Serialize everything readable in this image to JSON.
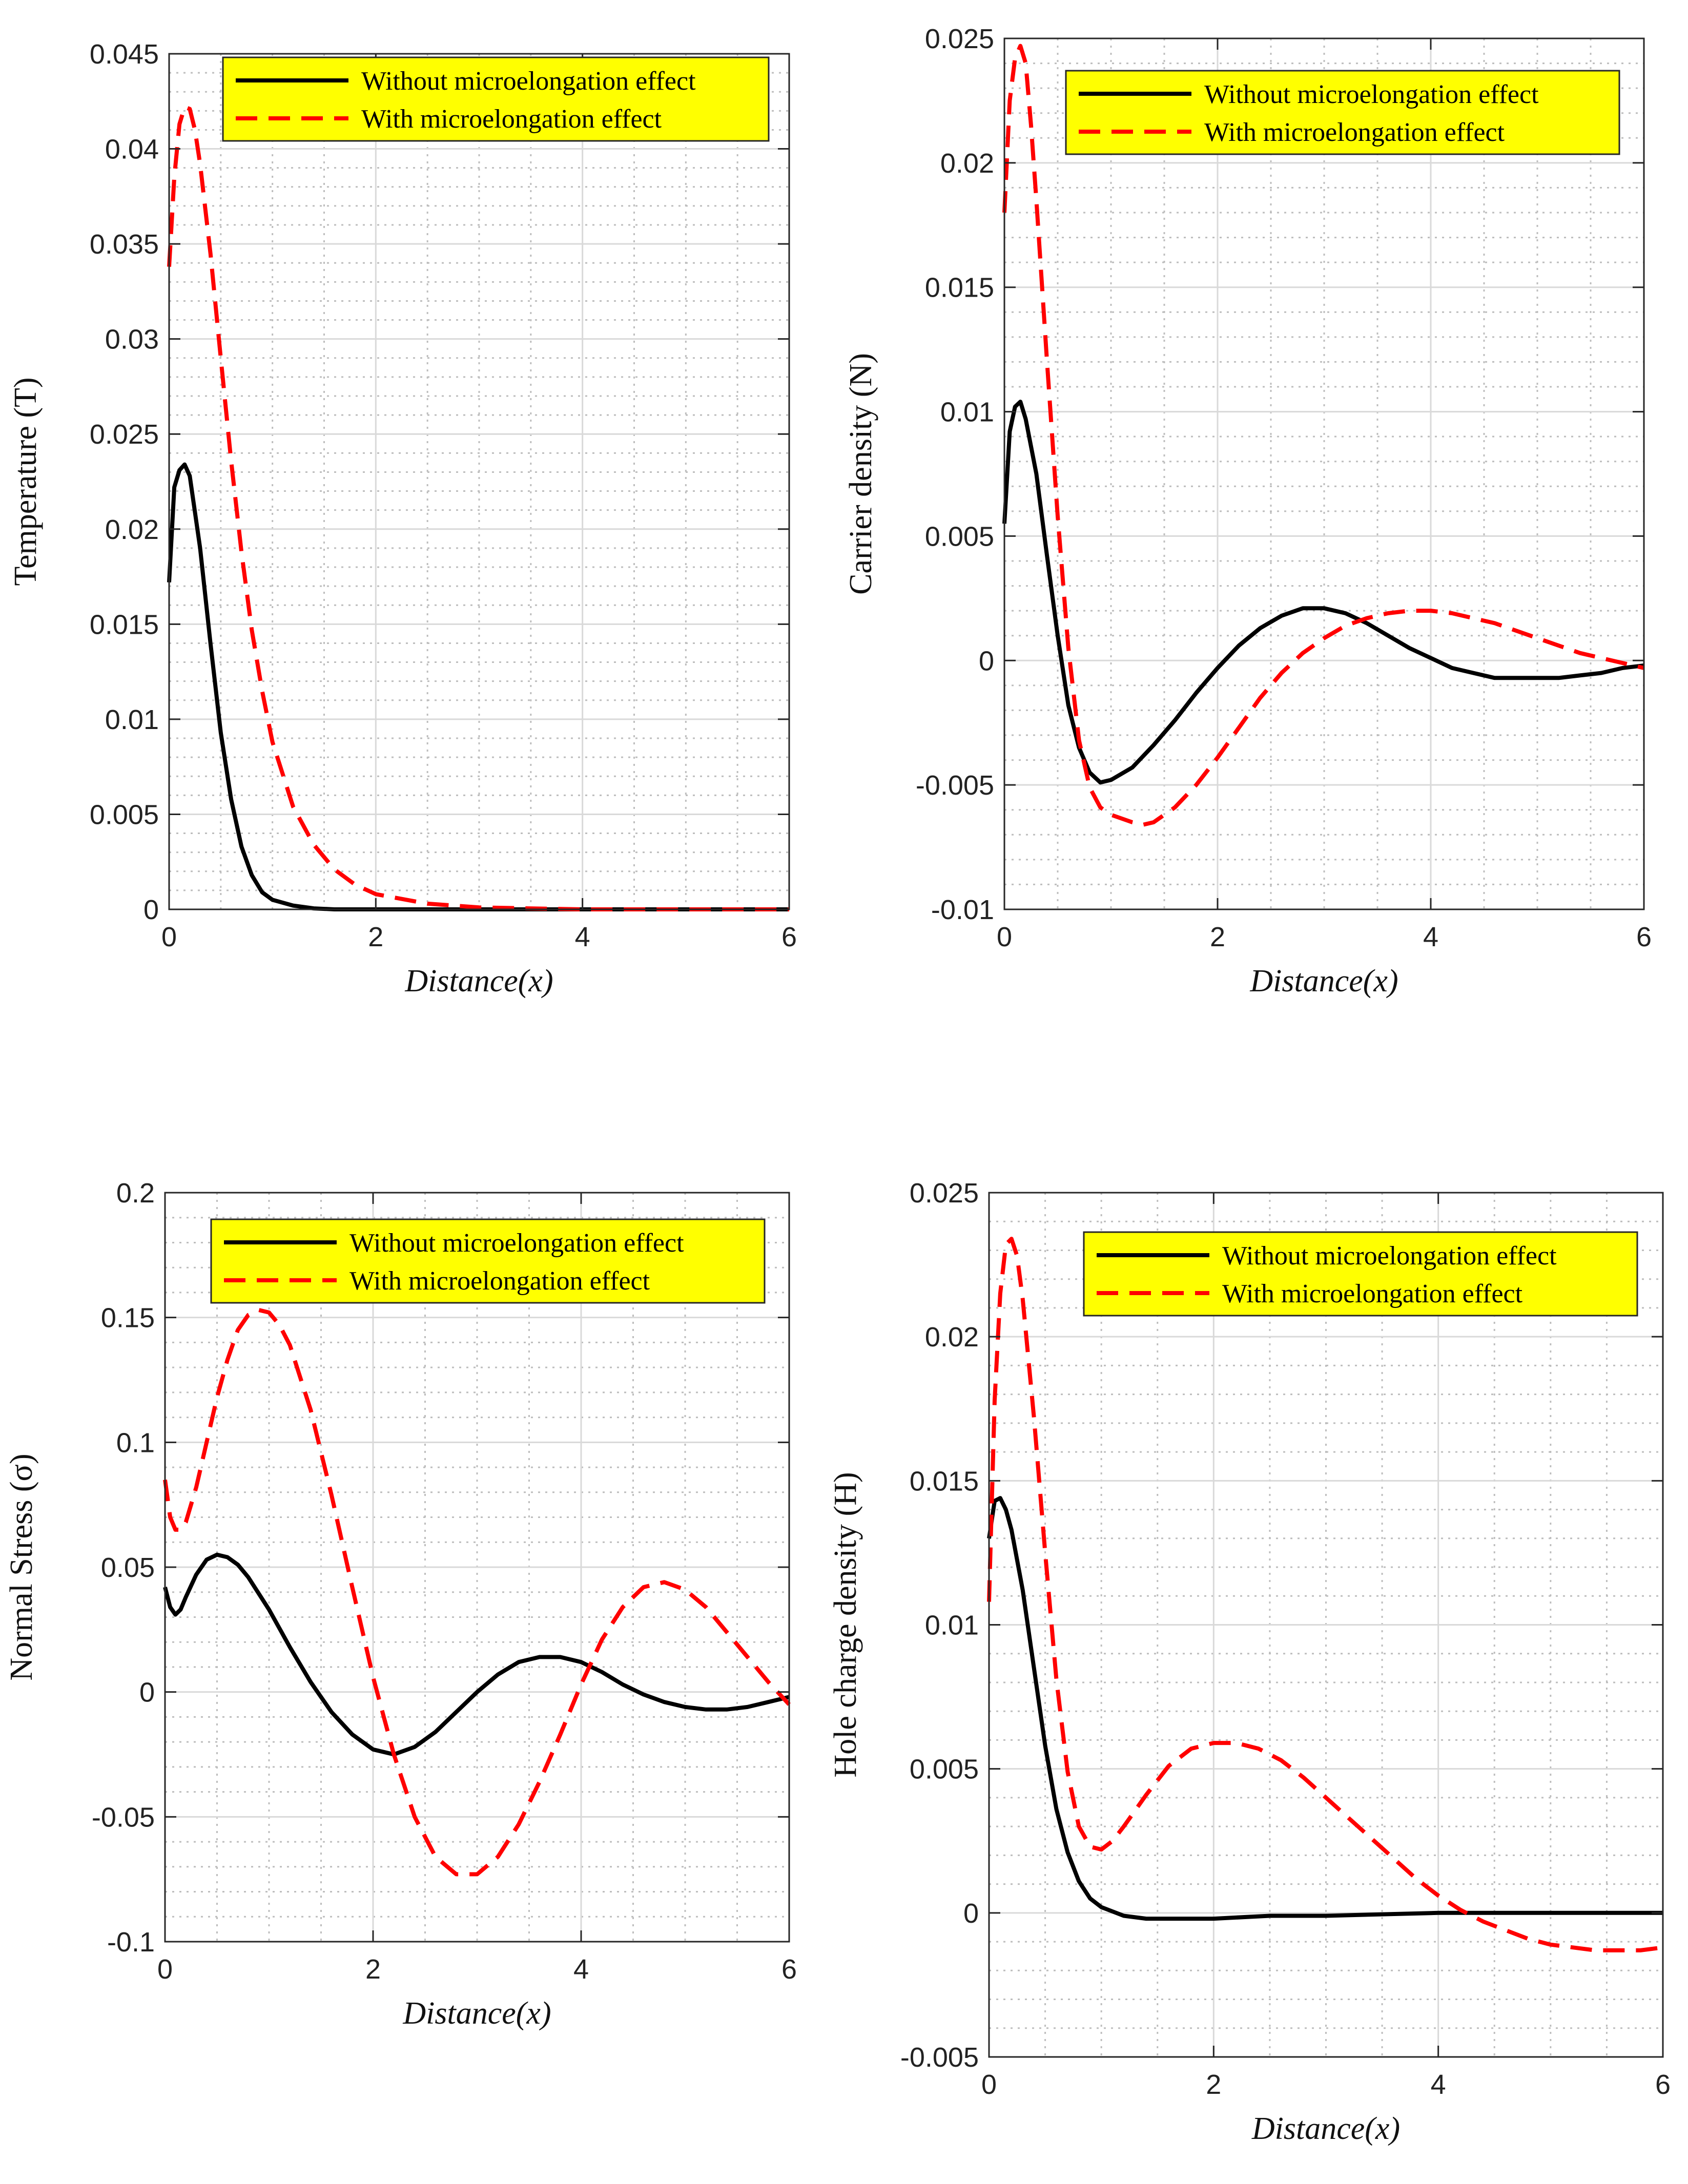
{
  "chart_data": [
    {
      "type": "line",
      "title": "",
      "xlabel": "Distance(x)",
      "ylabel": "Temperature (T)",
      "xlim": [
        0,
        6
      ],
      "ylim": [
        0,
        0.045
      ],
      "xticks": [
        0,
        2,
        4,
        6
      ],
      "xtick_labels": [
        "0",
        "2",
        "4",
        "6"
      ],
      "yticks": [
        0,
        0.005,
        0.01,
        0.015,
        0.02,
        0.025,
        0.03,
        0.035,
        0.04,
        0.045
      ],
      "ytick_labels": [
        "0",
        "0.005",
        "0.01",
        "0.015",
        "0.02",
        "0.025",
        "0.03",
        "0.035",
        "0.04",
        "0.045"
      ],
      "grid": true,
      "legend_position": "top-right",
      "series": [
        {
          "name": "Without microelongation effect",
          "style": "solid",
          "color": "#000000",
          "x": [
            0,
            0.05,
            0.1,
            0.15,
            0.2,
            0.3,
            0.4,
            0.5,
            0.6,
            0.7,
            0.8,
            0.9,
            1.0,
            1.2,
            1.4,
            1.6,
            2.0,
            3.0,
            4.0,
            5.0,
            6.0
          ],
          "y": [
            0.0172,
            0.0222,
            0.0231,
            0.0234,
            0.0228,
            0.019,
            0.014,
            0.0093,
            0.0058,
            0.0033,
            0.0018,
            0.0009,
            0.0005,
            0.0002,
            5e-05,
            0.0,
            0.0,
            0.0,
            0.0,
            0.0,
            0.0
          ]
        },
        {
          "name": "With microelongation effect",
          "style": "dashed",
          "color": "#ff0000",
          "x": [
            0,
            0.05,
            0.1,
            0.15,
            0.2,
            0.25,
            0.3,
            0.4,
            0.5,
            0.6,
            0.7,
            0.8,
            0.9,
            1.0,
            1.2,
            1.4,
            1.6,
            1.8,
            2.0,
            2.5,
            3.0,
            4.0,
            5.0,
            6.0
          ],
          "y": [
            0.0338,
            0.0385,
            0.0413,
            0.0422,
            0.0421,
            0.041,
            0.0392,
            0.0345,
            0.029,
            0.0236,
            0.0188,
            0.0147,
            0.0115,
            0.0088,
            0.0054,
            0.0034,
            0.0021,
            0.0013,
            0.0008,
            0.0003,
            0.0001,
            0.0,
            0.0,
            0.0
          ]
        }
      ]
    },
    {
      "type": "line",
      "title": "",
      "xlabel": "Distance(x)",
      "ylabel": "Carrier  density  (N)",
      "xlim": [
        0,
        6
      ],
      "ylim": [
        -0.01,
        0.025
      ],
      "xticks": [
        0,
        2,
        4,
        6
      ],
      "xtick_labels": [
        "0",
        "2",
        "4",
        "6"
      ],
      "yticks": [
        -0.01,
        -0.005,
        0,
        0.005,
        0.01,
        0.015,
        0.02,
        0.025
      ],
      "ytick_labels": [
        "-0.01",
        "-0.005",
        "0",
        "0.005",
        "0.01",
        "0.015",
        "0.02",
        "0.025"
      ],
      "grid": true,
      "legend_position": "top-right",
      "series": [
        {
          "name": "Without microelongation effect",
          "style": "solid",
          "color": "#000000",
          "x": [
            0,
            0.05,
            0.1,
            0.15,
            0.2,
            0.3,
            0.4,
            0.5,
            0.6,
            0.7,
            0.8,
            0.9,
            1.0,
            1.2,
            1.4,
            1.6,
            1.8,
            2.0,
            2.2,
            2.4,
            2.6,
            2.8,
            3.0,
            3.2,
            3.4,
            3.6,
            3.8,
            4.0,
            4.2,
            4.4,
            4.6,
            4.8,
            5.0,
            5.2,
            5.4,
            5.6,
            5.8,
            6.0
          ],
          "y": [
            0.0055,
            0.0092,
            0.0102,
            0.0104,
            0.0097,
            0.0075,
            0.0042,
            0.001,
            -0.0018,
            -0.0035,
            -0.0045,
            -0.0049,
            -0.0048,
            -0.0043,
            -0.0034,
            -0.0024,
            -0.0013,
            -0.0003,
            0.0006,
            0.0013,
            0.0018,
            0.0021,
            0.0021,
            0.0019,
            0.0015,
            0.001,
            0.0005,
            0.0001,
            -0.0003,
            -0.0005,
            -0.0007,
            -0.0007,
            -0.0007,
            -0.0007,
            -0.0006,
            -0.0005,
            -0.0003,
            -0.0002
          ]
        },
        {
          "name": "With microelongation effect",
          "style": "dashed",
          "color": "#ff0000",
          "x": [
            0,
            0.05,
            0.1,
            0.15,
            0.2,
            0.25,
            0.3,
            0.4,
            0.5,
            0.6,
            0.7,
            0.8,
            0.9,
            1.0,
            1.2,
            1.3,
            1.4,
            1.6,
            1.8,
            2.0,
            2.2,
            2.4,
            2.6,
            2.8,
            3.0,
            3.2,
            3.4,
            3.6,
            3.8,
            4.0,
            4.2,
            4.4,
            4.6,
            4.8,
            5.0,
            5.2,
            5.4,
            5.6,
            5.8,
            6.0
          ],
          "y": [
            0.018,
            0.0225,
            0.0242,
            0.0247,
            0.024,
            0.0215,
            0.0185,
            0.012,
            0.0058,
            0.0005,
            -0.0032,
            -0.0051,
            -0.0059,
            -0.0062,
            -0.0065,
            -0.0066,
            -0.0065,
            -0.0059,
            -0.005,
            -0.0039,
            -0.0027,
            -0.0015,
            -0.0005,
            0.0003,
            0.0009,
            0.0014,
            0.0017,
            0.0019,
            0.002,
            0.002,
            0.0019,
            0.0017,
            0.0015,
            0.0012,
            0.0009,
            0.0006,
            0.0003,
            0.0001,
            -0.0001,
            -0.0003
          ]
        }
      ]
    },
    {
      "type": "line",
      "title": "",
      "xlabel": "Distance(x)",
      "ylabel": "Normal Stress (σ)",
      "xlim": [
        0,
        6
      ],
      "ylim": [
        -0.1,
        0.2
      ],
      "xticks": [
        0,
        2,
        4,
        6
      ],
      "xtick_labels": [
        "0",
        "2",
        "4",
        "6"
      ],
      "yticks": [
        -0.1,
        -0.05,
        0,
        0.05,
        0.1,
        0.15,
        0.2
      ],
      "ytick_labels": [
        "-0.1",
        "-0.05",
        "0",
        "0.05",
        "0.1",
        "0.15",
        "0.2"
      ],
      "grid": true,
      "legend_position": "top-right",
      "series": [
        {
          "name": "Without microelongation effect",
          "style": "solid",
          "color": "#000000",
          "x": [
            0,
            0.05,
            0.1,
            0.15,
            0.2,
            0.3,
            0.4,
            0.5,
            0.6,
            0.7,
            0.8,
            1.0,
            1.2,
            1.4,
            1.6,
            1.8,
            2.0,
            2.2,
            2.4,
            2.6,
            2.8,
            3.0,
            3.2,
            3.4,
            3.6,
            3.8,
            4.0,
            4.2,
            4.4,
            4.6,
            4.8,
            5.0,
            5.2,
            5.4,
            5.6,
            5.8,
            6.0
          ],
          "y": [
            0.042,
            0.034,
            0.031,
            0.033,
            0.038,
            0.047,
            0.053,
            0.055,
            0.054,
            0.051,
            0.046,
            0.033,
            0.018,
            0.004,
            -0.008,
            -0.017,
            -0.023,
            -0.025,
            -0.022,
            -0.016,
            -0.008,
            0.0,
            0.007,
            0.012,
            0.014,
            0.014,
            0.012,
            0.008,
            0.003,
            -0.001,
            -0.004,
            -0.006,
            -0.007,
            -0.007,
            -0.006,
            -0.004,
            -0.002
          ]
        },
        {
          "name": "With microelongation effect",
          "style": "dashed",
          "color": "#ff0000",
          "x": [
            0,
            0.05,
            0.1,
            0.15,
            0.2,
            0.3,
            0.4,
            0.5,
            0.6,
            0.7,
            0.8,
            0.9,
            1.0,
            1.1,
            1.2,
            1.4,
            1.6,
            1.8,
            2.0,
            2.2,
            2.4,
            2.6,
            2.8,
            3.0,
            3.2,
            3.4,
            3.6,
            3.8,
            4.0,
            4.2,
            4.4,
            4.6,
            4.8,
            5.0,
            5.2,
            5.4,
            5.6,
            5.8,
            6.0
          ],
          "y": [
            0.085,
            0.07,
            0.065,
            0.065,
            0.068,
            0.082,
            0.1,
            0.118,
            0.133,
            0.145,
            0.151,
            0.153,
            0.152,
            0.147,
            0.139,
            0.113,
            0.079,
            0.042,
            0.006,
            -0.025,
            -0.05,
            -0.066,
            -0.073,
            -0.073,
            -0.066,
            -0.053,
            -0.036,
            -0.017,
            0.003,
            0.021,
            0.034,
            0.042,
            0.044,
            0.041,
            0.034,
            0.024,
            0.014,
            0.004,
            -0.005
          ]
        }
      ]
    },
    {
      "type": "line",
      "title": "",
      "xlabel": "Distance(x)",
      "ylabel": "Hole  charge  density (H)",
      "xlim": [
        0,
        6
      ],
      "ylim": [
        -0.005,
        0.025
      ],
      "xticks": [
        0,
        2,
        4,
        6
      ],
      "xtick_labels": [
        "0",
        "2",
        "4",
        "6"
      ],
      "yticks": [
        -0.005,
        0,
        0.005,
        0.01,
        0.015,
        0.02,
        0.025
      ],
      "ytick_labels": [
        "-0.005",
        "0",
        "0.005",
        "0.01",
        "0.015",
        "0.02",
        "0.025"
      ],
      "grid": true,
      "legend_position": "top-right",
      "series": [
        {
          "name": "Without microelongation effect",
          "style": "solid",
          "color": "#000000",
          "x": [
            0,
            0.05,
            0.1,
            0.15,
            0.2,
            0.3,
            0.4,
            0.5,
            0.6,
            0.7,
            0.8,
            0.9,
            1.0,
            1.2,
            1.4,
            1.6,
            1.8,
            2.0,
            2.5,
            3.0,
            4.0,
            5.0,
            6.0
          ],
          "y": [
            0.013,
            0.0143,
            0.0144,
            0.014,
            0.0133,
            0.0112,
            0.0085,
            0.0058,
            0.0036,
            0.0021,
            0.0011,
            0.0005,
            0.0002,
            -0.0001,
            -0.0002,
            -0.0002,
            -0.0002,
            -0.0002,
            -0.0001,
            -0.0001,
            0.0,
            0.0,
            0.0
          ]
        },
        {
          "name": "With microelongation effect",
          "style": "dashed",
          "color": "#ff0000",
          "x": [
            0,
            0.05,
            0.1,
            0.15,
            0.2,
            0.25,
            0.3,
            0.4,
            0.5,
            0.6,
            0.7,
            0.8,
            0.9,
            1.0,
            1.1,
            1.2,
            1.4,
            1.6,
            1.8,
            2.0,
            2.2,
            2.4,
            2.6,
            2.8,
            3.0,
            3.2,
            3.4,
            3.6,
            3.8,
            4.0,
            4.2,
            4.4,
            4.6,
            4.8,
            5.0,
            5.2,
            5.4,
            5.6,
            5.8,
            6.0
          ],
          "y": [
            0.0108,
            0.0178,
            0.0215,
            0.0232,
            0.0234,
            0.0228,
            0.0213,
            0.0172,
            0.0125,
            0.0081,
            0.0049,
            0.003,
            0.0023,
            0.0022,
            0.0025,
            0.003,
            0.0041,
            0.0051,
            0.0057,
            0.0059,
            0.0059,
            0.0057,
            0.0053,
            0.0047,
            0.004,
            0.0033,
            0.0026,
            0.0019,
            0.0012,
            0.0006,
            0.0001,
            -0.0003,
            -0.0006,
            -0.0009,
            -0.0011,
            -0.0012,
            -0.0013,
            -0.0013,
            -0.0013,
            -0.0012
          ]
        }
      ]
    }
  ]
}
